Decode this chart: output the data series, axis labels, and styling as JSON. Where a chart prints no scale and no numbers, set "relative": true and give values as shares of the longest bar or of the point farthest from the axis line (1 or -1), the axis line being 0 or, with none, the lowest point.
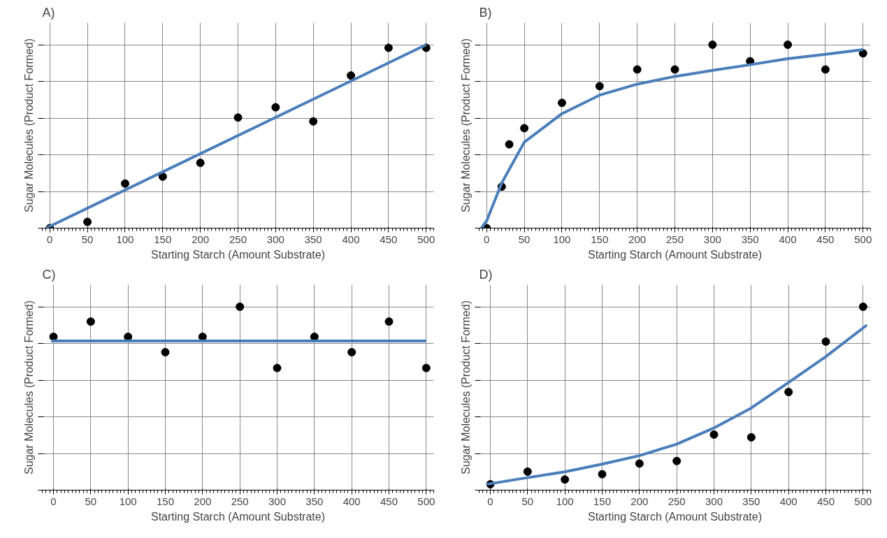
{
  "chart_data": [
    {
      "type": "scatter",
      "title": "A)",
      "xlabel": "Starting Starch (Amount Substrate)",
      "ylabel": "Sugar Molecules (Product Formed)",
      "relative": true,
      "grid": true,
      "xlim": [
        -10,
        510
      ],
      "xticks": [
        0,
        50,
        100,
        150,
        200,
        250,
        300,
        350,
        400,
        450,
        500
      ],
      "series": [
        {
          "marker": "circle",
          "color": "#000000",
          "x": [
            0,
            50,
            100,
            150,
            200,
            250,
            300,
            350,
            400,
            450,
            500
          ],
          "values": [
            0,
            0.034,
            0.243,
            0.281,
            0.356,
            0.603,
            0.659,
            0.582,
            0.832,
            0.983,
            0.983
          ]
        },
        {
          "type": "line",
          "color": "#4a7ebb",
          "x": [
            -5,
            500
          ],
          "values": [
            0,
            1
          ]
        }
      ]
    },
    {
      "type": "scatter",
      "title": "B)",
      "xlabel": "Starting Starch (Amount Substrate)",
      "ylabel": "Sugar Molecules (Product Formed)",
      "relative": true,
      "grid": true,
      "xlim": [
        -10,
        510
      ],
      "xticks": [
        0,
        50,
        100,
        150,
        200,
        250,
        300,
        350,
        400,
        450,
        500
      ],
      "series": [
        {
          "marker": "circle",
          "color": "#000000",
          "x": [
            0,
            20,
            30,
            50,
            100,
            150,
            200,
            250,
            300,
            350,
            400,
            450,
            500
          ],
          "values": [
            0,
            0.226,
            0.457,
            0.545,
            0.683,
            0.774,
            0.865,
            0.865,
            1,
            0.91,
            1,
            0.865,
            0.953
          ]
        },
        {
          "type": "line",
          "color": "#4a7ebb",
          "x": [
            -7,
            0,
            20,
            50,
            100,
            150,
            200,
            250,
            300,
            350,
            400,
            450,
            500
          ],
          "values": [
            0,
            0.04,
            0.246,
            0.469,
            0.624,
            0.725,
            0.785,
            0.827,
            0.86,
            0.891,
            0.924,
            0.948,
            0.973
          ]
        }
      ]
    },
    {
      "type": "scatter",
      "title": "C)",
      "xlabel": "Starting Starch (Amount Substrate)",
      "ylabel": "Sugar Molecules (Product Formed)",
      "relative": true,
      "grid": true,
      "xlim": [
        -15,
        510
      ],
      "xticks": [
        0,
        50,
        100,
        150,
        200,
        250,
        300,
        350,
        400,
        450,
        500
      ],
      "series": [
        {
          "marker": "circle",
          "color": "#000000",
          "x": [
            0,
            50,
            100,
            150,
            200,
            250,
            300,
            350,
            400,
            450,
            500
          ],
          "values": [
            0.836,
            0.919,
            0.836,
            0.752,
            0.836,
            1,
            0.666,
            0.836,
            0.752,
            0.919,
            0.666
          ]
        },
        {
          "type": "line",
          "color": "#4a7ebb",
          "x": [
            -3,
            500
          ],
          "values": [
            0.813,
            0.813
          ]
        }
      ]
    },
    {
      "type": "scatter",
      "title": "D)",
      "xlabel": "Starting Starch (Amount Substrate)",
      "ylabel": "Sugar Molecules (Product Formed)",
      "relative": true,
      "grid": true,
      "xlim": [
        -15,
        510
      ],
      "xticks": [
        0,
        50,
        100,
        150,
        200,
        250,
        300,
        350,
        400,
        450,
        500
      ],
      "series": [
        {
          "marker": "circle",
          "color": "#000000",
          "x": [
            0,
            50,
            100,
            150,
            200,
            250,
            300,
            350,
            400,
            450,
            500
          ],
          "values": [
            0.032,
            0.101,
            0.058,
            0.087,
            0.145,
            0.159,
            0.303,
            0.288,
            0.535,
            0.81,
            1
          ]
        },
        {
          "type": "line",
          "color": "#4a7ebb",
          "x": [
            -5,
            50,
            100,
            150,
            200,
            250,
            300,
            350,
            400,
            450,
            505
          ],
          "values": [
            0.032,
            0.068,
            0.1,
            0.142,
            0.188,
            0.251,
            0.339,
            0.448,
            0.587,
            0.728,
            0.9
          ]
        }
      ]
    }
  ]
}
